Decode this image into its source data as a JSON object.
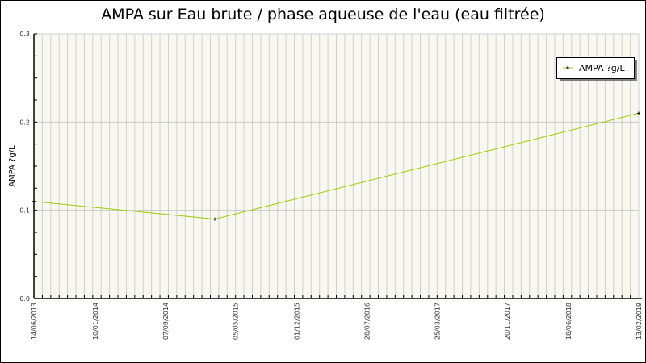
{
  "chart_data": {
    "type": "line",
    "title": "AMPA sur Eau brute / phase aqueuse de l'eau (eau filtrée)",
    "xlabel": "",
    "ylabel": "AMPA ?g/L",
    "xlim": [
      "2013-06-14",
      "2019-02-13"
    ],
    "ylim": [
      0,
      0.3
    ],
    "yticks": [
      "0.0",
      "0.1",
      "0.2",
      "0.3"
    ],
    "xtick_labels": [
      "14/06/2013",
      "10/01/2014",
      "07/09/2014",
      "05/05/2015",
      "01/12/2015",
      "28/07/2016",
      "25/03/2017",
      "20/11/2017",
      "18/06/2018",
      "13/02/2019"
    ],
    "grid": true,
    "legend_position": "top-right",
    "plot_background": "#f8f8f0",
    "series": [
      {
        "name": "AMPA ?g/L",
        "color": "#99cc00",
        "marker_color": "#000000",
        "points": [
          {
            "x": "2013-06-14",
            "y": 0.11
          },
          {
            "x": "2015-02-23",
            "y": 0.09
          },
          {
            "x": "2019-02-13",
            "y": 0.21
          }
        ]
      }
    ]
  }
}
